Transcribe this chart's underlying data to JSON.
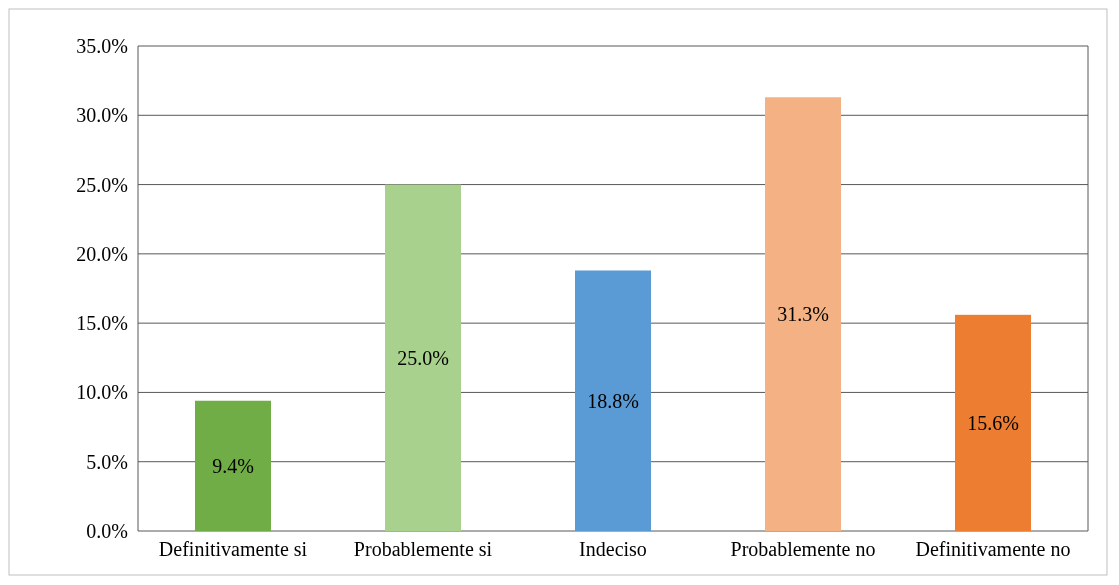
{
  "chart_data": {
    "type": "bar",
    "categories": [
      "Definitivamente si",
      "Probablemente si",
      "Indeciso",
      "Probablemente no",
      "Definitivamente no"
    ],
    "values": [
      9.4,
      25.0,
      18.8,
      31.3,
      15.6
    ],
    "colors": [
      "#70ad47",
      "#a9d18e",
      "#5b9bd5",
      "#f4b183",
      "#ed7d31"
    ],
    "value_labels": [
      "9.4%",
      "25.0%",
      "18.8%",
      "31.3%",
      "15.6%"
    ],
    "ylim": [
      0,
      35
    ],
    "yticks": [
      {
        "value": 0,
        "label": "0.0%"
      },
      {
        "value": 5,
        "label": "5.0%"
      },
      {
        "value": 10,
        "label": "10.0%"
      },
      {
        "value": 15,
        "label": "15.0%"
      },
      {
        "value": 20,
        "label": "20.0%"
      },
      {
        "value": 25,
        "label": "25.0%"
      },
      {
        "value": 30,
        "label": "30.0%"
      },
      {
        "value": 35,
        "label": "35.0%"
      }
    ],
    "grid": "y"
  }
}
